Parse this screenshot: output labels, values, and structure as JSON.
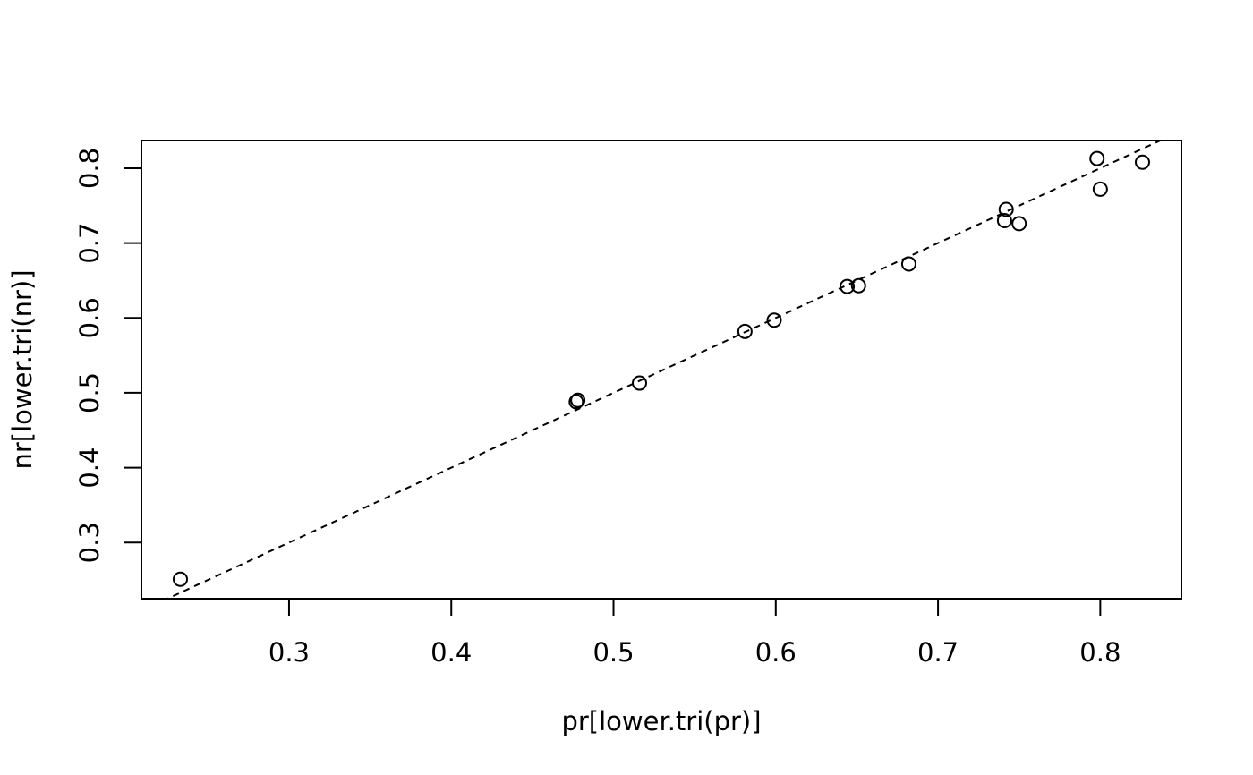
{
  "chart_data": {
    "type": "scatter",
    "title": "",
    "xlabel": "pr[lower.tri(pr)]",
    "ylabel": "nr[lower.tri(nr)]",
    "xlim": [
      0.209,
      0.85
    ],
    "ylim": [
      0.225,
      0.837
    ],
    "x_ticks": [
      0.3,
      0.4,
      0.5,
      0.6,
      0.7,
      0.8
    ],
    "y_ticks": [
      0.3,
      0.4,
      0.5,
      0.6,
      0.7,
      0.8
    ],
    "x_tick_labels": [
      "0.3",
      "0.4",
      "0.5",
      "0.6",
      "0.7",
      "0.8"
    ],
    "y_tick_labels": [
      "0.3",
      "0.4",
      "0.5",
      "0.6",
      "0.7",
      "0.8"
    ],
    "points": [
      {
        "x": 0.233,
        "y": 0.251
      },
      {
        "x": 0.477,
        "y": 0.488
      },
      {
        "x": 0.478,
        "y": 0.49
      },
      {
        "x": 0.516,
        "y": 0.513
      },
      {
        "x": 0.581,
        "y": 0.582
      },
      {
        "x": 0.599,
        "y": 0.597
      },
      {
        "x": 0.644,
        "y": 0.642
      },
      {
        "x": 0.651,
        "y": 0.643
      },
      {
        "x": 0.682,
        "y": 0.672
      },
      {
        "x": 0.741,
        "y": 0.73
      },
      {
        "x": 0.742,
        "y": 0.745
      },
      {
        "x": 0.75,
        "y": 0.726
      },
      {
        "x": 0.798,
        "y": 0.813
      },
      {
        "x": 0.8,
        "y": 0.772
      },
      {
        "x": 0.826,
        "y": 0.808
      }
    ],
    "reference_line": {
      "style": "dashed",
      "intercept": 0,
      "slope": 1
    },
    "grid": false,
    "legend": "none"
  }
}
